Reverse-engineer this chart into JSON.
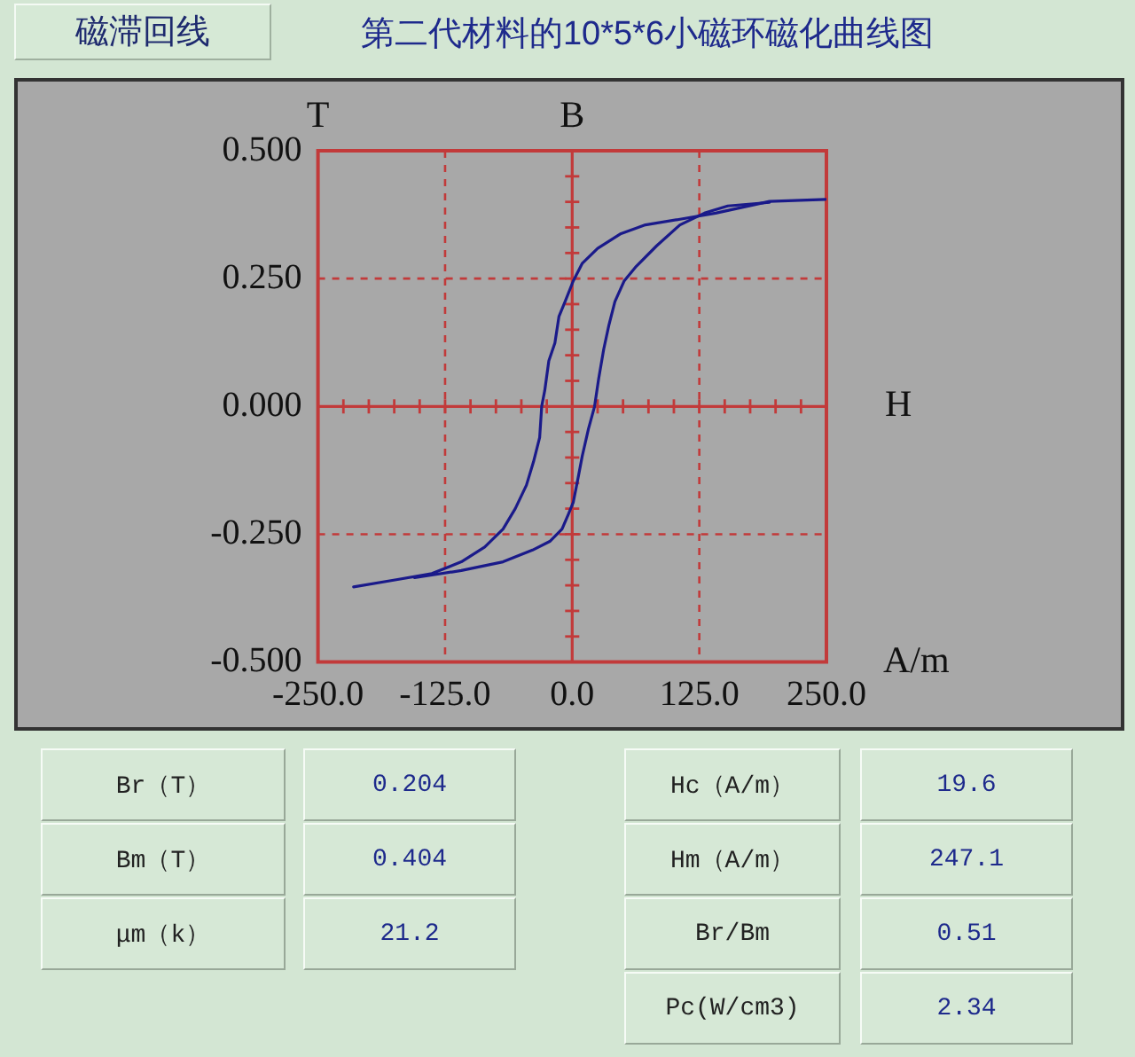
{
  "chart_data": {
    "type": "line",
    "title": "第二代材料的10*5*6小磁环磁化曲线图",
    "subtitle": "磁滞回线",
    "xlabel": "A/m",
    "ylabel": "T",
    "annotations": [
      "B",
      "H",
      "Br（T）",
      "0.204",
      "Bm（T）",
      "0.404",
      "μm（k）",
      "21.2",
      "Hc（A/m）",
      "19.6",
      "Hm（A/m）",
      "247.1",
      "Br/Bm",
      "0.51",
      "Pc(W/cm3)",
      "2.34"
    ],
    "xlim": [
      -250,
      250
    ],
    "ylim": [
      -0.5,
      0.5
    ],
    "xticks": [
      {
        "value": -250,
        "label": "-250.0"
      },
      {
        "value": -125,
        "label": "-125.0"
      },
      {
        "value": 0,
        "label": "0.0"
      },
      {
        "value": 125,
        "label": "125.0"
      },
      {
        "value": 250,
        "label": "250.0"
      }
    ],
    "yticks": [
      {
        "value": -0.5,
        "label": "-0.500"
      },
      {
        "value": -0.25,
        "label": "-0.250"
      },
      {
        "value": 0,
        "label": "0.000"
      },
      {
        "value": 0.25,
        "label": "0.250"
      },
      {
        "value": 0.5,
        "label": "0.500"
      }
    ],
    "grid": true,
    "series": [
      {
        "color": "#1a1a8a",
        "x": [
          -215,
          -173,
          -138,
          -109,
          -86,
          -68,
          -56,
          -45,
          -38,
          -32,
          -30,
          -27,
          -23,
          -17,
          -13,
          -7,
          1,
          10,
          25,
          48,
          72,
          106,
          141,
          194,
          249
        ],
        "values": [
          -0.353,
          -0.339,
          -0.327,
          -0.304,
          -0.275,
          -0.24,
          -0.2,
          -0.154,
          -0.108,
          -0.061,
          0.0,
          0.031,
          0.089,
          0.124,
          0.176,
          0.205,
          0.245,
          0.28,
          0.309,
          0.338,
          0.355,
          0.366,
          0.378,
          0.401,
          0.405
        ]
      },
      {
        "color": "#1a1a8a",
        "x": [
          -155,
          -109,
          -68,
          -39,
          -22,
          -10,
          -4,
          1,
          5,
          10,
          16,
          22,
          26,
          31,
          36,
          42,
          51,
          63,
          83,
          106,
          130,
          153,
          194
        ],
        "values": [
          -0.335,
          -0.321,
          -0.304,
          -0.281,
          -0.264,
          -0.24,
          -0.212,
          -0.188,
          -0.148,
          -0.096,
          -0.044,
          0.0,
          0.054,
          0.112,
          0.158,
          0.205,
          0.245,
          0.274,
          0.314,
          0.355,
          0.378,
          0.392,
          0.399
        ]
      }
    ]
  }
}
